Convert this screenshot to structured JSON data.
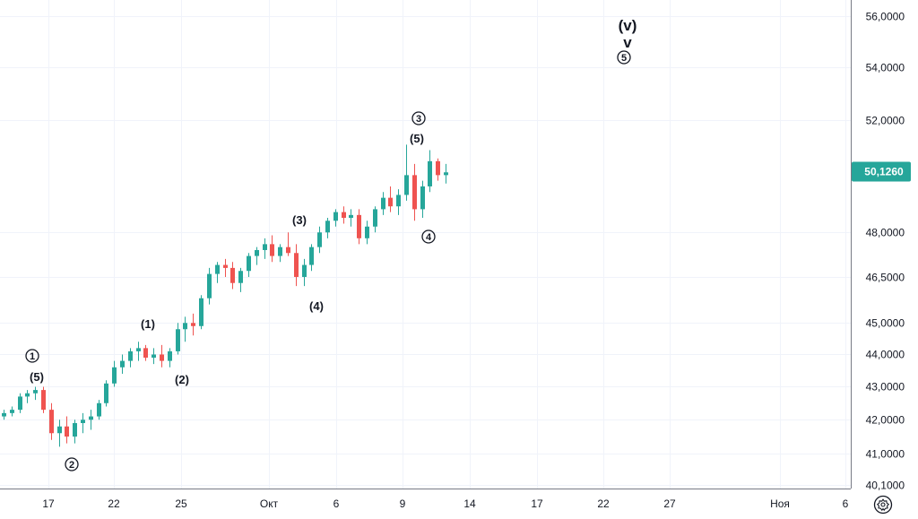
{
  "chart_data": {
    "type": "candlestick",
    "title": "",
    "xlabel": "",
    "ylabel": "",
    "y_axis": {
      "min": 40.1,
      "max": 56.6,
      "scale": "log",
      "side": "right",
      "ticks": [
        "56,0000",
        "54,0000",
        "52,0000",
        "48,0000",
        "46,5000",
        "45,0000",
        "44,0000",
        "43,0000",
        "42,0000",
        "41,0000",
        "40,1000"
      ],
      "tick_values": [
        56,
        54,
        52,
        48,
        46.5,
        45,
        44,
        43,
        42,
        41,
        40.1
      ]
    },
    "x_axis": {
      "tick_labels": [
        "17",
        "22",
        "25",
        "Окт",
        "6",
        "9",
        "14",
        "17",
        "22",
        "27",
        "Ноя",
        "6"
      ],
      "range": [
        "2024-09-13",
        "2024-11-07"
      ]
    },
    "grid": true,
    "last_price": {
      "label": "50,1260",
      "value": 50.126,
      "color": "#26a69a"
    },
    "up_color": "#26a69a",
    "down_color": "#ef5350",
    "series": [
      {
        "values": [
          [
            42.1,
            42.3,
            42.0,
            42.2
          ],
          [
            42.2,
            42.4,
            42.1,
            42.3
          ],
          [
            42.3,
            42.8,
            42.2,
            42.7
          ],
          [
            42.7,
            42.9,
            42.5,
            42.8
          ],
          [
            42.8,
            43.0,
            42.6,
            42.9
          ],
          [
            42.9,
            43.0,
            42.2,
            42.3
          ],
          [
            42.3,
            42.5,
            41.4,
            41.6
          ],
          [
            41.6,
            42.0,
            41.2,
            41.8
          ],
          [
            41.8,
            42.1,
            41.3,
            41.5
          ],
          [
            41.5,
            42.0,
            41.3,
            41.9
          ],
          [
            41.9,
            42.2,
            41.6,
            42.0
          ],
          [
            42.0,
            42.3,
            41.7,
            42.1
          ],
          [
            42.1,
            42.6,
            42.0,
            42.5
          ],
          [
            42.5,
            43.2,
            42.4,
            43.1
          ],
          [
            43.1,
            43.8,
            43.0,
            43.6
          ],
          [
            43.6,
            44.0,
            43.4,
            43.8
          ],
          [
            43.8,
            44.2,
            43.6,
            44.1
          ],
          [
            44.1,
            44.4,
            43.8,
            44.2
          ],
          [
            44.2,
            44.3,
            43.8,
            43.9
          ],
          [
            43.9,
            44.2,
            43.7,
            44.0
          ],
          [
            44.0,
            44.3,
            43.6,
            43.8
          ],
          [
            43.8,
            44.2,
            43.6,
            44.1
          ],
          [
            44.1,
            45.0,
            44.0,
            44.8
          ],
          [
            44.8,
            45.2,
            44.4,
            45.0
          ],
          [
            45.0,
            45.3,
            44.6,
            44.9
          ],
          [
            44.9,
            45.9,
            44.8,
            45.8
          ],
          [
            45.8,
            46.8,
            45.6,
            46.6
          ],
          [
            46.6,
            47.0,
            46.3,
            46.9
          ],
          [
            46.9,
            47.1,
            46.5,
            46.8
          ],
          [
            46.8,
            47.0,
            46.1,
            46.3
          ],
          [
            46.3,
            46.8,
            46.0,
            46.7
          ],
          [
            46.7,
            47.3,
            46.5,
            47.2
          ],
          [
            47.2,
            47.5,
            46.9,
            47.4
          ],
          [
            47.4,
            47.8,
            47.1,
            47.6
          ],
          [
            47.6,
            47.9,
            47.0,
            47.2
          ],
          [
            47.2,
            47.6,
            47.0,
            47.5
          ],
          [
            47.5,
            48.0,
            47.2,
            47.3
          ],
          [
            47.3,
            47.6,
            46.2,
            46.5
          ],
          [
            46.5,
            47.1,
            46.2,
            46.9
          ],
          [
            46.9,
            47.6,
            46.7,
            47.5
          ],
          [
            47.5,
            48.2,
            47.3,
            48.0
          ],
          [
            48.0,
            48.5,
            47.8,
            48.4
          ],
          [
            48.4,
            48.8,
            48.2,
            48.7
          ],
          [
            48.7,
            48.9,
            48.3,
            48.5
          ],
          [
            48.5,
            48.8,
            48.2,
            48.6
          ],
          [
            48.6,
            48.8,
            47.6,
            47.8
          ],
          [
            47.8,
            48.4,
            47.6,
            48.2
          ],
          [
            48.2,
            48.9,
            48.0,
            48.8
          ],
          [
            48.8,
            49.4,
            48.6,
            49.2
          ],
          [
            49.2,
            49.6,
            48.7,
            48.9
          ],
          [
            48.9,
            49.5,
            48.6,
            49.3
          ],
          [
            49.3,
            51.1,
            49.1,
            50.0
          ],
          [
            50.0,
            50.4,
            48.4,
            48.8
          ],
          [
            48.8,
            49.8,
            48.5,
            49.6
          ],
          [
            49.6,
            50.9,
            49.4,
            50.5
          ],
          [
            50.5,
            50.6,
            49.8,
            50.0
          ],
          [
            50.0,
            50.4,
            49.7,
            50.1
          ]
        ]
      }
    ],
    "annotations": [
      {
        "text": "1",
        "style": "circled"
      },
      {
        "text": "(5)",
        "style": "paren"
      },
      {
        "text": "2",
        "style": "circled"
      },
      {
        "text": "(1)",
        "style": "paren"
      },
      {
        "text": "(2)",
        "style": "paren"
      },
      {
        "text": "(3)",
        "style": "paren"
      },
      {
        "text": "(4)",
        "style": "paren"
      },
      {
        "text": "3",
        "style": "circled"
      },
      {
        "text": "(5)",
        "style": "paren"
      },
      {
        "text": "4",
        "style": "circled"
      },
      {
        "text": "(v)",
        "style": "paren"
      },
      {
        "text": "v",
        "style": "plain"
      },
      {
        "text": "5",
        "style": "circled"
      }
    ]
  },
  "icons": {
    "settings": "gear-icon"
  }
}
